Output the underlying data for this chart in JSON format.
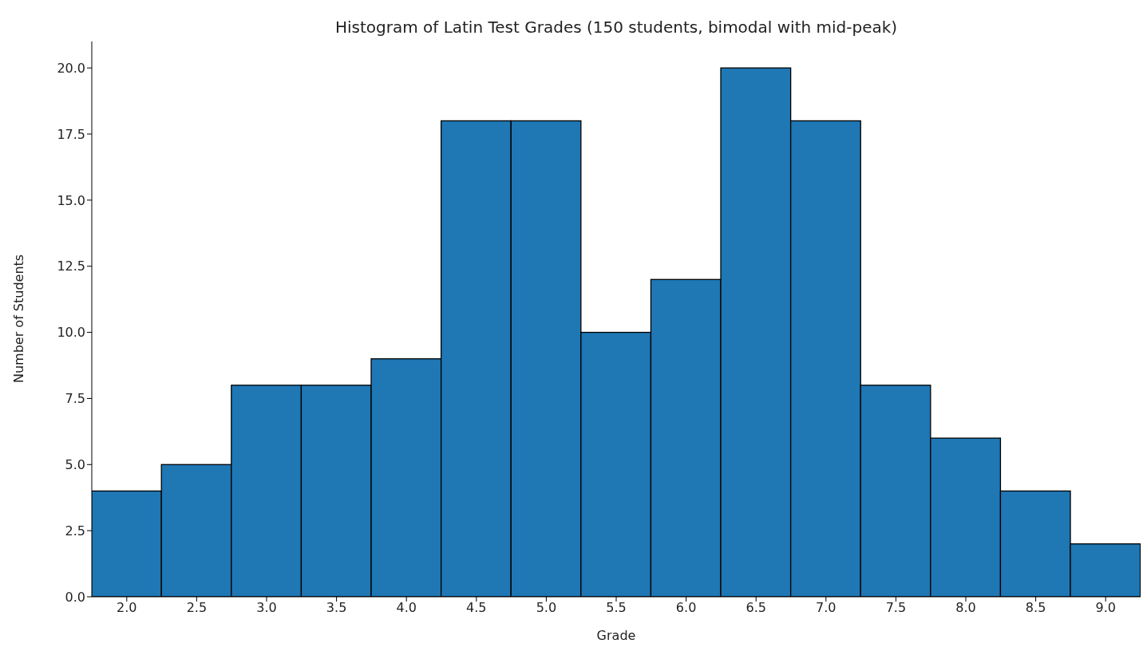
{
  "chart_data": {
    "type": "histogram",
    "title": "Histogram of Latin Test Grades (150 students, bimodal with mid-peak)",
    "xlabel": "Grade",
    "ylabel": "Number of Students",
    "bins": [
      1.75,
      2.25,
      2.75,
      3.25,
      3.75,
      4.25,
      4.75,
      5.25,
      5.75,
      6.25,
      6.75,
      7.25,
      7.75,
      8.25,
      8.75,
      9.25
    ],
    "values": [
      4,
      5,
      8,
      8,
      9,
      18,
      18,
      10,
      12,
      20,
      18,
      8,
      6,
      4,
      2
    ],
    "color": "#1f77b4",
    "xlim": [
      1.75,
      9.25
    ],
    "xticks": [
      {
        "value": 2,
        "label": "2.0"
      },
      {
        "value": 2.5,
        "label": "2.5"
      },
      {
        "value": 3,
        "label": "3.0"
      },
      {
        "value": 3.5,
        "label": "3.5"
      },
      {
        "value": 4,
        "label": "4.0"
      },
      {
        "value": 4.5,
        "label": "4.5"
      },
      {
        "value": 5,
        "label": "5.0"
      },
      {
        "value": 5.5,
        "label": "5.5"
      },
      {
        "value": 6,
        "label": "6.0"
      },
      {
        "value": 6.5,
        "label": "6.5"
      },
      {
        "value": 7,
        "label": "7.0"
      },
      {
        "value": 7.5,
        "label": "7.5"
      },
      {
        "value": 8,
        "label": "8.0"
      },
      {
        "value": 8.5,
        "label": "8.5"
      },
      {
        "value": 9,
        "label": "9.0"
      }
    ],
    "ylim": [
      0,
      21
    ],
    "yticks": [
      {
        "value": 0,
        "label": "0.0"
      },
      {
        "value": 2.5,
        "label": "2.5"
      },
      {
        "value": 5,
        "label": "5.0"
      },
      {
        "value": 7.5,
        "label": "7.5"
      },
      {
        "value": 10,
        "label": "10.0"
      },
      {
        "value": 12.5,
        "label": "12.5"
      },
      {
        "value": 15,
        "label": "15.0"
      },
      {
        "value": 17.5,
        "label": "17.5"
      },
      {
        "value": 20,
        "label": "20.0"
      }
    ],
    "grid": false
  }
}
